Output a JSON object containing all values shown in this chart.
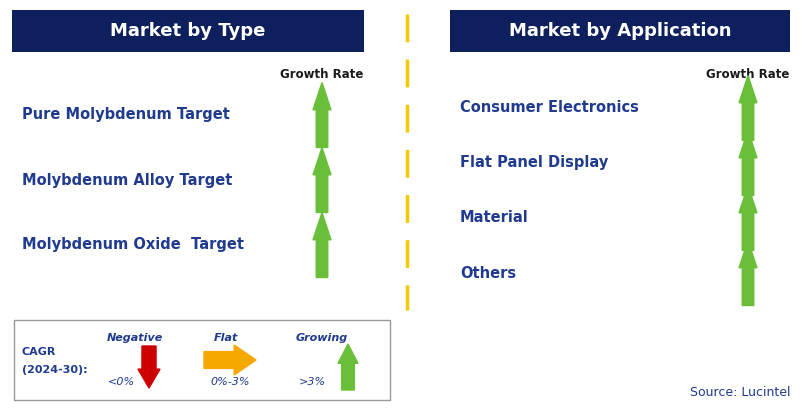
{
  "header_bg_color": "#0d1f5c",
  "header_text_color": "#ffffff",
  "left_header": "Market by Type",
  "right_header": "Market by Application",
  "left_items": [
    "Pure Molybdenum Target",
    "Molybdenum Alloy Target",
    "Molybdenum Oxide  Target"
  ],
  "right_items": [
    "Consumer Electronics",
    "Flat Panel Display",
    "Material",
    "Others"
  ],
  "item_text_color": "#1f3a8f",
  "growth_rate_label": "Growth Rate",
  "growth_rate_color": "#1a1a1a",
  "green_arrow_color": "#6abf3a",
  "red_arrow_color": "#cc0000",
  "orange_arrow_color": "#f5a800",
  "divider_color": "#f5c800",
  "cagr_label_line1": "CAGR",
  "cagr_label_line2": "(2024-30):",
  "source_text": "Source: Lucintel",
  "source_color": "#1f3a8f",
  "bg_color": "#ffffff",
  "legend_border_color": "#999999"
}
